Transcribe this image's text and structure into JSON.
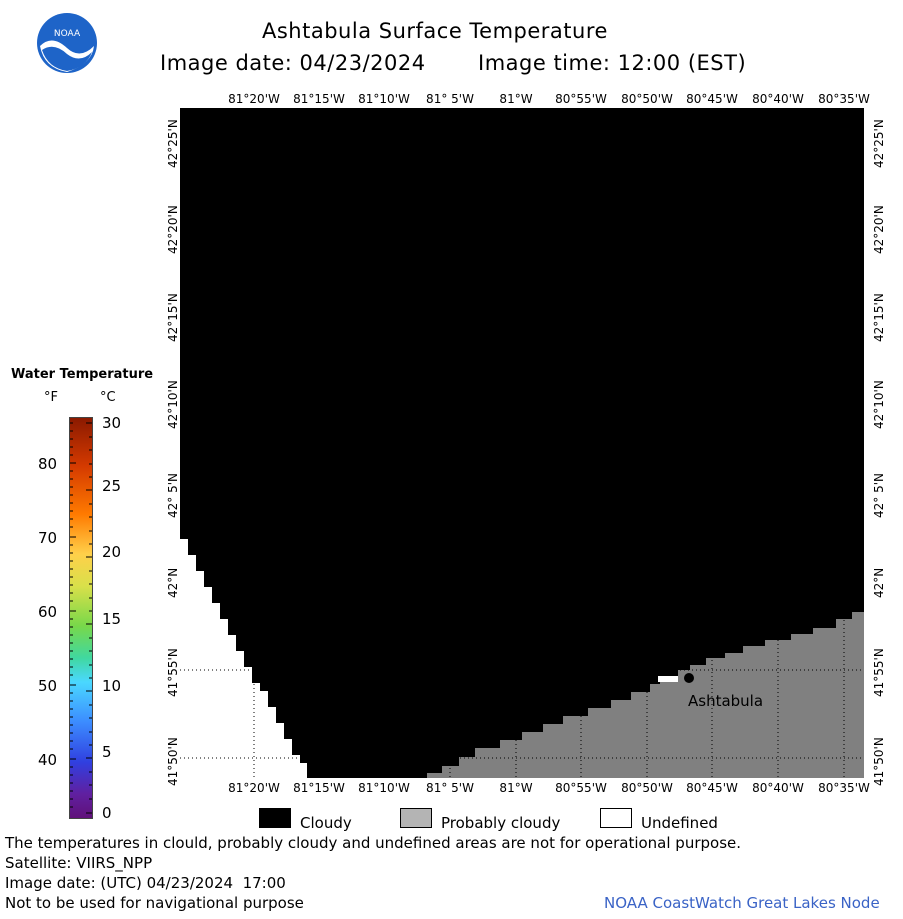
{
  "header": {
    "title": "Ashtabula Surface Temperature",
    "image_date_label": "Image date: 04/23/2024",
    "image_time_label": "Image time: 12:00 (EST)",
    "logo_text": "NOAA"
  },
  "map": {
    "lon_labels": [
      "81°20'W",
      "81°15'W",
      "81°10'W",
      "81° 5'W",
      "81°W",
      "80°55'W",
      "80°50'W",
      "80°45'W",
      "80°40'W",
      "80°35'W"
    ],
    "lat_labels": [
      "42°25'N",
      "42°20'N",
      "42°15'N",
      "42°10'N",
      "42° 5'N",
      "42°N",
      "41°55'N",
      "41°50'N"
    ],
    "place_label": "Ashtabula",
    "colors": {
      "cloudy": "#000000",
      "probably_cloudy": "#808080",
      "undefined": "#ffffff"
    }
  },
  "colorbar": {
    "title": "Water Temperature",
    "unit_f": "°F",
    "unit_c": "°C",
    "f_ticks": [
      "80",
      "70",
      "60",
      "50",
      "40"
    ],
    "c_ticks": [
      "30",
      "25",
      "20",
      "15",
      "10",
      "5",
      "0"
    ]
  },
  "legend": {
    "cloudy": "Cloudy",
    "probably_cloudy": "Probably cloudy",
    "undefined": "Undefined"
  },
  "footer": {
    "notice": "The temperatures in clould, probably cloudy and undefined areas are not for operational purpose.",
    "satellite": "Satellite: VIIRS_NPP",
    "utc_date": "Image date: (UTC) 04/23/2024  17:00",
    "nav_warning": "Not to be used for navigational purpose",
    "credit": "NOAA CoastWatch Great Lakes Node"
  }
}
